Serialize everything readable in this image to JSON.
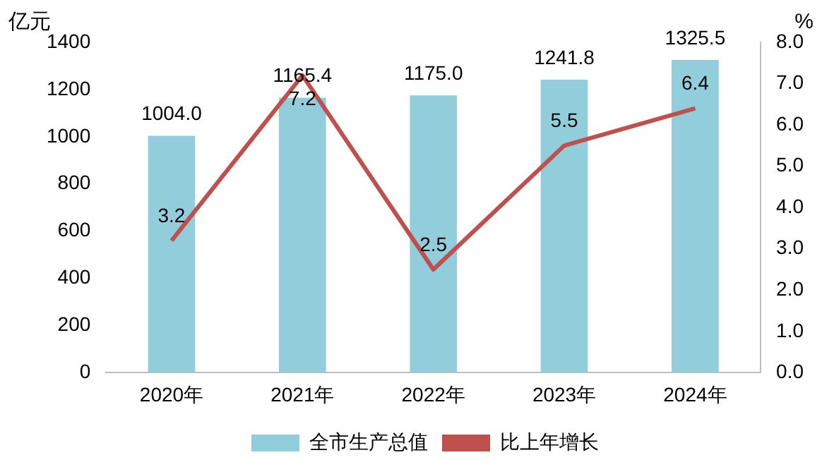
{
  "chart_data": {
    "type": "bar",
    "categories": [
      "2020年",
      "2021年",
      "2022年",
      "2023年",
      "2024年"
    ],
    "series": [
      {
        "name": "全市生产总值",
        "color": "#92cddc",
        "values": [
          1004.0,
          1165.4,
          1175.0,
          1241.8,
          1325.5
        ],
        "value_labels": [
          "1004.0",
          "1165.4",
          "1175.0",
          "1241.8",
          "1325.5"
        ]
      },
      {
        "name": "比上年增长",
        "type": "line",
        "axis": "y2",
        "color": "#c0504d",
        "values": [
          3.2,
          7.2,
          2.5,
          5.5,
          6.4
        ],
        "value_labels": [
          "3.2",
          "7.2",
          "2.5",
          "5.5",
          "6.4"
        ]
      }
    ],
    "ylabel": "亿元",
    "y2label": "%",
    "ylim": [
      0,
      1400
    ],
    "yticks": [
      0,
      200,
      400,
      600,
      800,
      1000,
      1200,
      1400
    ],
    "y2lim": [
      0,
      8.0
    ],
    "y2ticks": [
      {
        "value": 0,
        "label": "0.0"
      },
      {
        "value": 1,
        "label": "1.0"
      },
      {
        "value": 2,
        "label": "2.0"
      },
      {
        "value": 3,
        "label": "3.0"
      },
      {
        "value": 4,
        "label": "4.0"
      },
      {
        "value": 5,
        "label": "5.0"
      },
      {
        "value": 6,
        "label": "6.0"
      },
      {
        "value": 7,
        "label": "7.0"
      },
      {
        "value": 8,
        "label": "8.0"
      }
    ],
    "grid": false,
    "legend": "bottom",
    "marker": "none",
    "line_style": "solid"
  }
}
